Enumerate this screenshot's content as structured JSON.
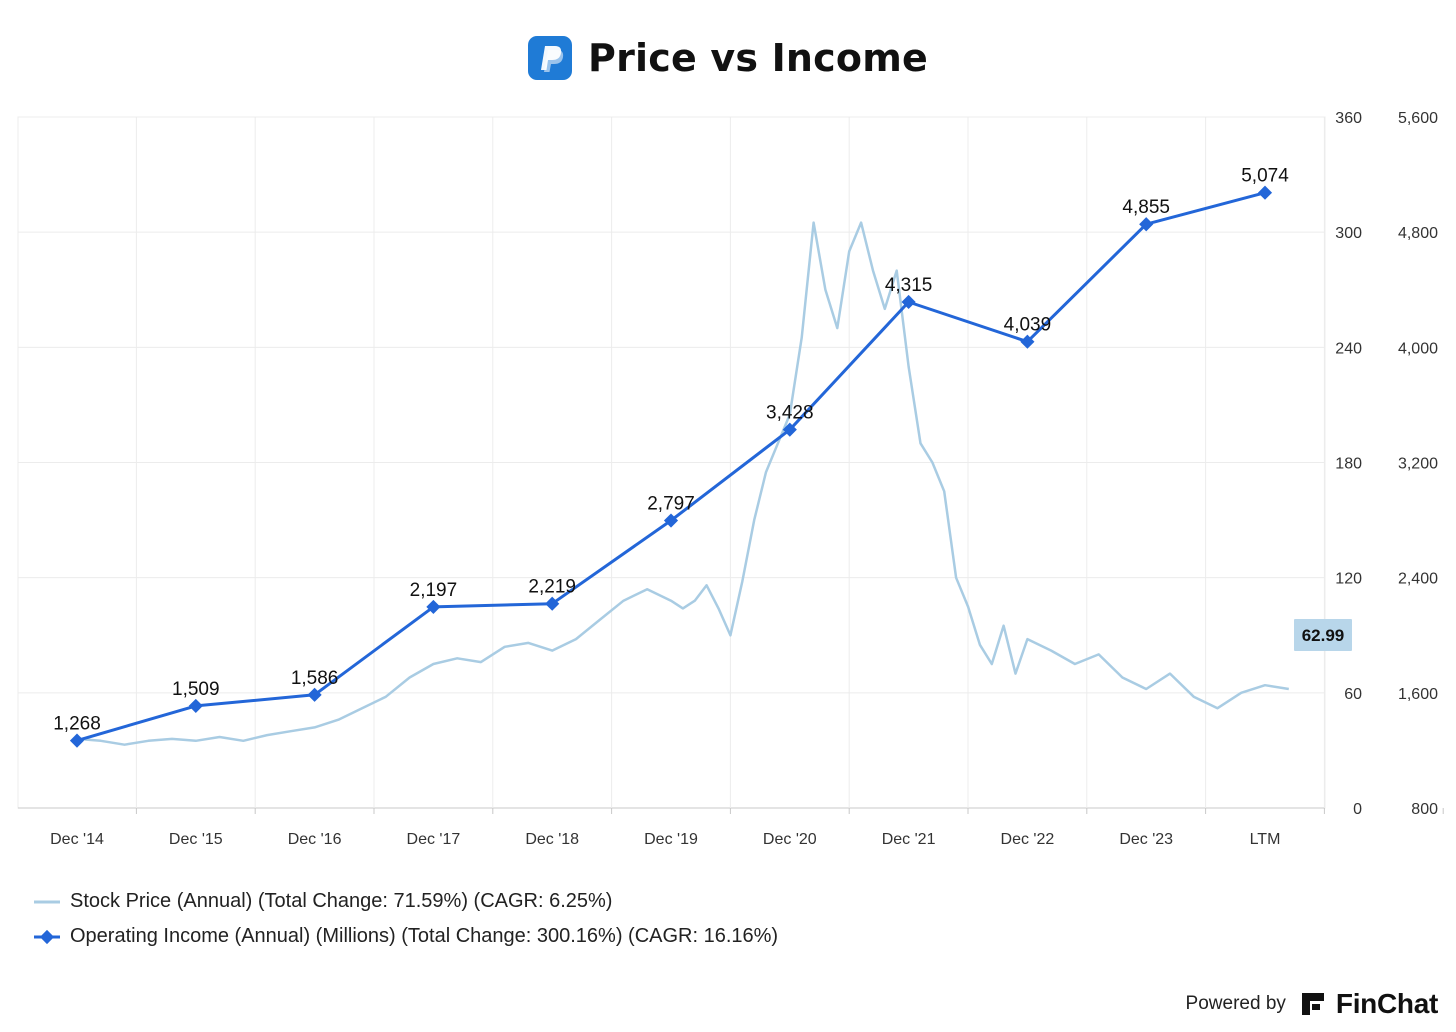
{
  "header": {
    "title": "Price vs Income",
    "logo_icon": "paypal-logo-icon",
    "logo_color": "#1f7bd6"
  },
  "chart_data": {
    "type": "line",
    "title": "Price vs Income",
    "categories": [
      "Dec '14",
      "Dec '15",
      "Dec '16",
      "Dec '17",
      "Dec '18",
      "Dec '19",
      "Dec '20",
      "Dec '21",
      "Dec '22",
      "Dec '23",
      "LTM"
    ],
    "y_left_ticks": [
      "360",
      "300",
      "240",
      "180",
      "120",
      "60",
      "0"
    ],
    "y_right_ticks": [
      "5,600",
      "4,800",
      "4,000",
      "3,200",
      "2,400",
      "1,600",
      "800"
    ],
    "ylim_price": [
      0,
      360
    ],
    "ylim_income": [
      800,
      5600
    ],
    "grid": true,
    "legend_position": "bottom-left",
    "series": [
      {
        "name": "Stock Price (Annual) (Total Change: 71.59%) (CAGR: 6.25%)",
        "axis": "left",
        "color": "#a9cce3",
        "x": [
          2015.0,
          2015.2,
          2015.4,
          2015.6,
          2015.8,
          2016.0,
          2016.2,
          2016.4,
          2016.6,
          2016.8,
          2017.0,
          2017.2,
          2017.4,
          2017.6,
          2017.8,
          2018.0,
          2018.2,
          2018.4,
          2018.6,
          2018.8,
          2019.0,
          2019.2,
          2019.4,
          2019.6,
          2019.8,
          2020.0,
          2020.1,
          2020.2,
          2020.3,
          2020.4,
          2020.5,
          2020.6,
          2020.7,
          2020.8,
          2020.9,
          2021.0,
          2021.1,
          2021.2,
          2021.3,
          2021.4,
          2021.5,
          2021.6,
          2021.7,
          2021.8,
          2021.9,
          2022.0,
          2022.1,
          2022.2,
          2022.3,
          2022.4,
          2022.5,
          2022.6,
          2022.7,
          2022.8,
          2022.9,
          2023.0,
          2023.2,
          2023.4,
          2023.6,
          2023.8,
          2024.0,
          2024.2,
          2024.4,
          2024.6,
          2024.8,
          2025.0,
          2025.2
        ],
        "values": [
          36,
          35,
          33,
          35,
          36,
          35,
          37,
          35,
          38,
          40,
          42,
          46,
          52,
          58,
          68,
          75,
          78,
          76,
          84,
          86,
          82,
          88,
          98,
          108,
          114,
          108,
          104,
          108,
          116,
          104,
          90,
          118,
          150,
          175,
          190,
          205,
          245,
          305,
          270,
          250,
          290,
          305,
          280,
          260,
          280,
          230,
          190,
          180,
          165,
          120,
          105,
          85,
          75,
          95,
          70,
          88,
          82,
          75,
          80,
          68,
          62,
          70,
          58,
          52,
          60,
          64,
          62
        ]
      },
      {
        "name": "Operating Income (Annual) (Millions) (Total Change: 300.16%) (CAGR: 16.16%)",
        "axis": "right",
        "color": "#2366d8",
        "categories": [
          "Dec '14",
          "Dec '15",
          "Dec '16",
          "Dec '17",
          "Dec '18",
          "Dec '19",
          "Dec '20",
          "Dec '21",
          "Dec '22",
          "Dec '23",
          "LTM"
        ],
        "values": [
          1268,
          1509,
          1586,
          2197,
          2219,
          2797,
          3428,
          4315,
          4039,
          4855,
          5074
        ],
        "labels": [
          "1,268",
          "1,509",
          "1,586",
          "2,197",
          "2,219",
          "2,797",
          "3,428",
          "4,315",
          "4,039",
          "4,855",
          "5,074"
        ]
      }
    ],
    "last_price_badge": "62.99",
    "badge_color": "#b8d6ea"
  },
  "legend": {
    "price_label": "Stock Price (Annual) (Total Change: 71.59%) (CAGR: 6.25%)",
    "income_label": "Operating Income (Annual) (Millions) (Total Change: 300.16%) (CAGR: 16.16%)"
  },
  "footer": {
    "powered_by": "Powered by",
    "brand": "FinChat",
    "brand_icon": "finchat-logo-icon"
  }
}
